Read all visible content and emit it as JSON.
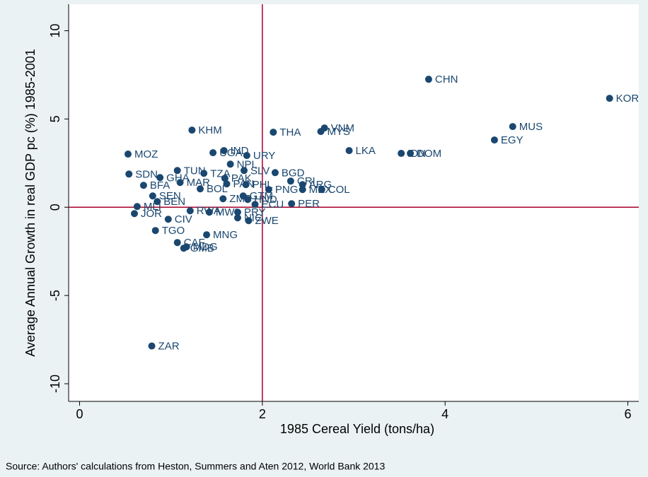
{
  "chart_data": {
    "type": "scatter",
    "x_label": "1985 Cereal Yield (tons/ha)",
    "y_label": "Average Annual Growth in real GDP pc (%) 1985-2001",
    "note": "Source: Authors' calculations from Heston, Summers and Aten 2012, World Bank 2013",
    "color": "#1a476f",
    "ref_line_color": "#a8002b",
    "xline": 2,
    "yline": 0,
    "xlim": [
      -0.12,
      6.12
    ],
    "ylim": [
      -11,
      11.5
    ],
    "xticks": [
      0,
      2,
      4,
      6
    ],
    "yticks": [
      -10,
      -5,
      0,
      5,
      10
    ],
    "labels": [
      "KOR",
      "CHN",
      "MUS",
      "EGY",
      "VNM",
      "MYS",
      "THA",
      "KHM",
      "LKA",
      "IDN",
      "DOM",
      "MOZ",
      "IND",
      "UGA",
      "URY",
      "NPL",
      "TUN",
      "TZA",
      "SLV",
      "BGD",
      "SDN",
      "GHA",
      "PAK",
      "MAR",
      "PAN",
      "PHL",
      "CRI",
      "ARG",
      "BFA",
      "MEX",
      "COL",
      "PNG",
      "BOL",
      "SEN",
      "BEN",
      "ZMB",
      "GTM",
      "HND",
      "ECU",
      "PER",
      "MLI",
      "JOR",
      "RWA",
      "MWI",
      "PRY",
      "NIC",
      "ZWE",
      "CIV",
      "TGO",
      "MNG",
      "CAF",
      "MDG",
      "GMB",
      "ZAR"
    ],
    "x": [
      5.8,
      3.82,
      4.74,
      4.54,
      2.68,
      2.64,
      2.12,
      1.23,
      2.95,
      3.52,
      3.62,
      0.53,
      1.58,
      1.46,
      1.83,
      1.65,
      1.07,
      1.36,
      1.8,
      2.14,
      0.54,
      0.88,
      1.59,
      1.1,
      1.61,
      1.82,
      2.31,
      2.44,
      0.7,
      2.44,
      2.65,
      2.07,
      1.32,
      0.8,
      0.85,
      1.57,
      1.79,
      1.84,
      1.92,
      2.32,
      0.63,
      0.6,
      1.21,
      1.42,
      1.73,
      1.73,
      1.85,
      0.97,
      0.83,
      1.39,
      1.07,
      1.17,
      1.14,
      0.79
    ],
    "values": [
      6.17,
      7.25,
      4.57,
      3.81,
      4.49,
      4.29,
      4.25,
      4.37,
      3.21,
      3.05,
      3.05,
      3.01,
      3.21,
      3.09,
      2.93,
      2.44,
      2.08,
      1.92,
      2.08,
      1.96,
      1.88,
      1.68,
      1.64,
      1.4,
      1.32,
      1.28,
      1.48,
      1.28,
      1.24,
      1.0,
      1.0,
      1.0,
      1.04,
      0.64,
      0.32,
      0.48,
      0.64,
      0.44,
      0.16,
      0.2,
      0.04,
      -0.36,
      -0.2,
      -0.28,
      -0.28,
      -0.6,
      -0.76,
      -0.68,
      -1.32,
      -1.56,
      -2.0,
      -2.24,
      -2.32,
      -7.86
    ]
  }
}
